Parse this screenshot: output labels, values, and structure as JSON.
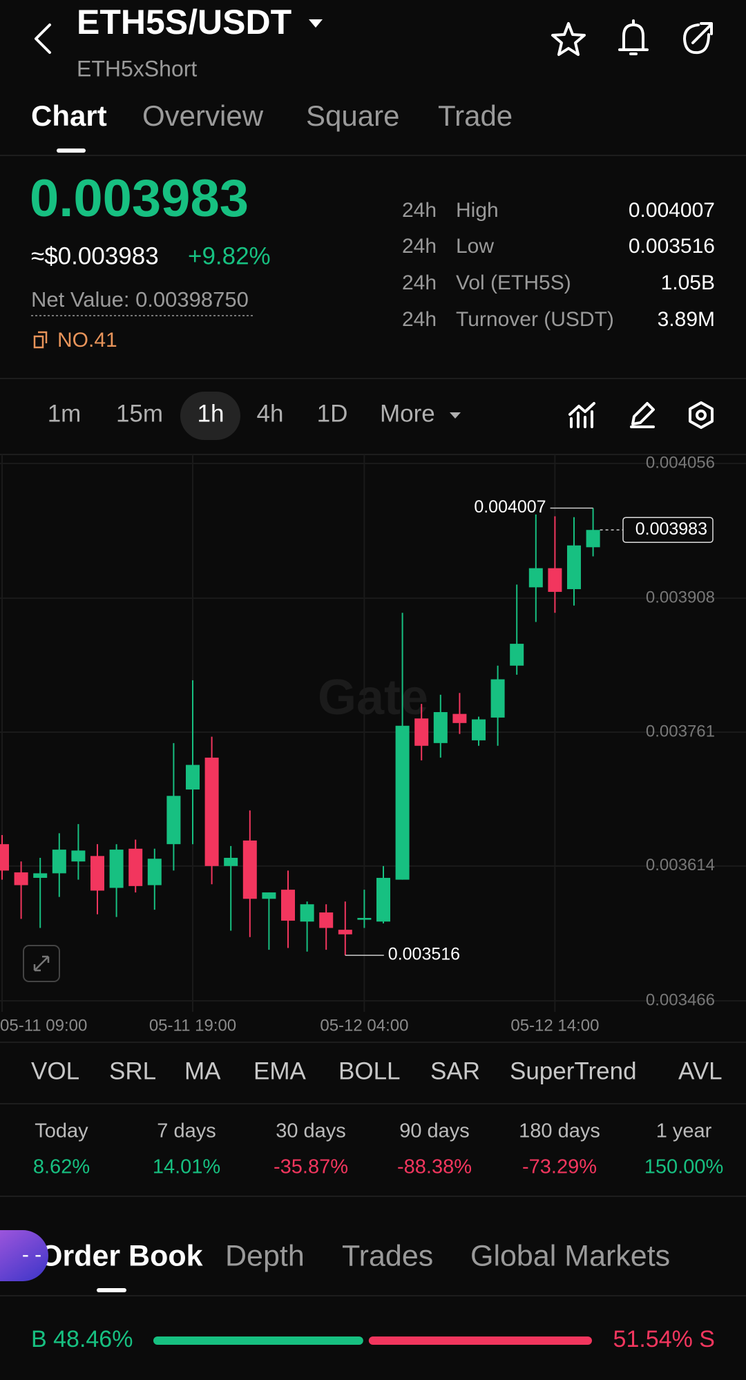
{
  "header": {
    "title": "ETH5S/USDT",
    "subtitle": "ETH5xShort"
  },
  "tabs": [
    "Chart",
    "Overview",
    "Square",
    "Trade"
  ],
  "price": {
    "last": "0.003983",
    "usd": "≈$0.003983",
    "change": "+9.82%",
    "net_value": "Net Value: 0.00398750",
    "rank": "NO.41"
  },
  "stats": [
    {
      "period": "24h",
      "label": "High",
      "value": "0.004007"
    },
    {
      "period": "24h",
      "label": "Low",
      "value": "0.003516"
    },
    {
      "period": "24h",
      "label": "Vol (ETH5S)",
      "value": "1.05B"
    },
    {
      "period": "24h",
      "label": "Turnover (USDT)",
      "value": "3.89M"
    }
  ],
  "intervals": [
    "1m",
    "15m",
    "1h",
    "4h",
    "1D",
    "More"
  ],
  "chart_data": {
    "type": "candlestick",
    "watermark": "Gate",
    "x": [
      "05-11 09:00",
      null,
      null,
      null,
      null,
      null,
      null,
      null,
      null,
      null,
      "05-11 19:00",
      null,
      null,
      null,
      null,
      null,
      null,
      null,
      null,
      "05-12 04:00",
      null,
      null,
      null,
      null,
      null,
      null,
      null,
      null,
      null,
      "05-12 14:00",
      null,
      null
    ],
    "open": [
      0.003638,
      0.003607,
      0.003601,
      0.003606,
      0.003619,
      0.003625,
      0.00359,
      0.003633,
      0.003593,
      0.003638,
      0.003698,
      0.003733,
      0.003614,
      0.003642,
      0.003578,
      0.003588,
      0.003553,
      0.003563,
      0.003544,
      0.003555,
      0.003553,
      0.003599,
      0.003776,
      0.003749,
      0.003781,
      0.003752,
      0.003777,
      0.003834,
      0.00392,
      0.003941,
      0.003918,
      0.003964
    ],
    "high": [
      0.003648,
      0.003619,
      0.003623,
      0.00365,
      0.00366,
      0.003638,
      0.003638,
      0.003643,
      0.003633,
      0.003749,
      0.003818,
      0.003756,
      0.003636,
      0.003675,
      0.003585,
      0.003609,
      0.003575,
      0.003572,
      0.003575,
      0.003588,
      0.003614,
      0.003892,
      0.003792,
      0.003802,
      0.003804,
      0.003778,
      0.003834,
      0.003923,
      0.004,
      0.003998,
      0.003997,
      0.004007
    ],
    "low": [
      0.003599,
      0.003556,
      0.003546,
      0.00358,
      0.003599,
      0.003561,
      0.003558,
      0.003585,
      0.003566,
      0.003609,
      0.003638,
      0.003594,
      0.003543,
      0.003536,
      0.003522,
      0.003524,
      0.00352,
      0.003522,
      0.003516,
      0.003546,
      0.003551,
      0.003599,
      0.00373,
      0.003733,
      0.003759,
      0.003746,
      0.003746,
      0.003824,
      0.003882,
      0.003892,
      0.0039,
      0.003954
    ],
    "close": [
      0.003609,
      0.003593,
      0.003606,
      0.003632,
      0.003631,
      0.003587,
      0.003632,
      0.003592,
      0.003622,
      0.003691,
      0.003725,
      0.003614,
      0.003623,
      0.003578,
      0.003585,
      0.003554,
      0.003572,
      0.003546,
      0.003539,
      0.003557,
      0.003601,
      0.003768,
      0.003746,
      0.003783,
      0.003771,
      0.003775,
      0.003819,
      0.003858,
      0.003941,
      0.003915,
      0.003966,
      0.003983
    ],
    "up_color": "#17c081",
    "down_color": "#f2365e",
    "ylim": [
      0.003466,
      0.004056
    ],
    "yticks": [
      0.003466,
      0.003614,
      0.003761,
      0.003908,
      0.004056
    ],
    "grid": true,
    "high_label": 0.004007,
    "low_label": 0.003516,
    "last_price": 0.003983
  },
  "indicators": [
    "VOL",
    "SRL",
    "MA",
    "EMA",
    "BOLL",
    "SAR",
    "SuperTrend",
    "AVL"
  ],
  "performance": [
    {
      "period": "Today",
      "value": "8.62%"
    },
    {
      "period": "7 days",
      "value": "14.01%"
    },
    {
      "period": "30 days",
      "value": "-35.87%"
    },
    {
      "period": "90 days",
      "value": "-88.38%"
    },
    {
      "period": "180 days",
      "value": "-73.29%"
    },
    {
      "period": "1 year",
      "value": "150.00%"
    }
  ],
  "book_tabs": [
    "Order Book",
    "Depth",
    "Trades",
    "Global Markets"
  ],
  "float_button": "- -",
  "ratio": {
    "buy": {
      "value": 48.46,
      "label": "B 48.46%"
    },
    "sell": {
      "value": 51.54,
      "label": "51.54% S"
    }
  }
}
